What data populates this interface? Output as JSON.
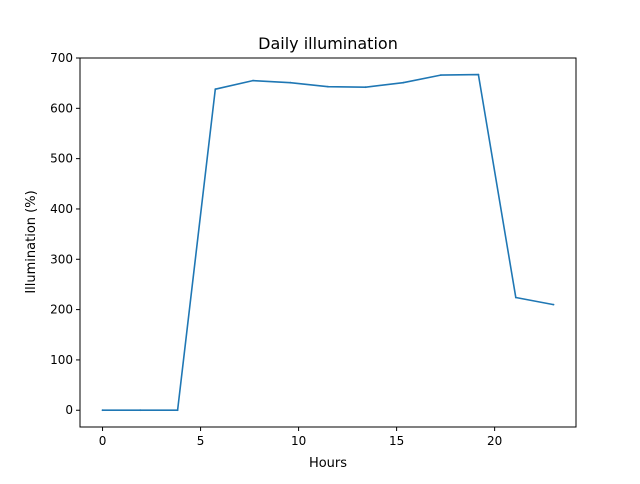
{
  "chart_data": {
    "type": "line",
    "title": "Daily illumination",
    "xlabel": "Hours",
    "ylabel": "Illumination (%)",
    "xlim": [
      -1.15,
      24.15
    ],
    "ylim": [
      -33.3,
      700
    ],
    "xticks": [
      0,
      5,
      10,
      15,
      20
    ],
    "yticks": [
      0,
      100,
      200,
      300,
      400,
      500,
      600,
      700
    ],
    "grid": false,
    "legend": "none",
    "series": [
      {
        "color": "#1f77b4",
        "x": [
          0,
          1.92,
          3.83,
          5.75,
          7.67,
          9.58,
          11.5,
          13.42,
          15.33,
          17.25,
          19.17,
          21.08,
          23
        ],
        "y": [
          0,
          0,
          0,
          638,
          655,
          651,
          643,
          642,
          651,
          666,
          667,
          224,
          210
        ]
      }
    ]
  }
}
